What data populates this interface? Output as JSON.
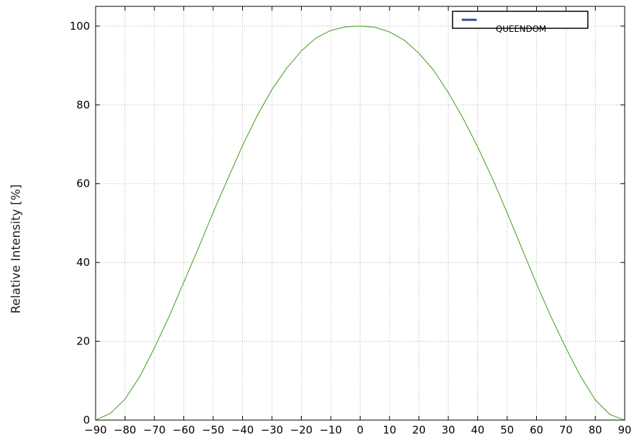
{
  "chart_data": {
    "type": "line",
    "title": "",
    "xlabel": "",
    "ylabel": "Relative Intensity [%]",
    "xlim": [
      -90,
      90
    ],
    "ylim": [
      0,
      105
    ],
    "x_ticks": [
      -90,
      -80,
      -70,
      -60,
      -50,
      -40,
      -30,
      -20,
      -10,
      0,
      10,
      20,
      30,
      40,
      50,
      60,
      70,
      80,
      90
    ],
    "x_tick_labels": [
      "−90",
      "−80",
      "−70",
      "−60",
      "−50",
      "−40",
      "−30",
      "−20",
      "−10",
      "0",
      "10",
      "20",
      "30",
      "40",
      "50",
      "60",
      "70",
      "80",
      "90"
    ],
    "y_ticks": [
      0,
      20,
      40,
      60,
      80,
      100
    ],
    "y_tick_labels": [
      "0",
      "20",
      "40",
      "60",
      "80",
      "100"
    ],
    "grid": true,
    "legend_position": "top-right",
    "legend_entries": [
      {
        "label": "QUEENDOM",
        "color": "#2b4c9b"
      }
    ],
    "series": [
      {
        "color": "#5aaa3c",
        "x": [
          -90,
          -85,
          -80,
          -75,
          -70,
          -65,
          -60,
          -55,
          -50,
          -45,
          -40,
          -35,
          -30,
          -25,
          -20,
          -15,
          -10,
          -5,
          0,
          5,
          10,
          15,
          20,
          25,
          30,
          35,
          40,
          45,
          50,
          55,
          60,
          65,
          70,
          75,
          80,
          85,
          90
        ],
        "y": [
          0,
          1.7,
          5.3,
          11.0,
          18.3,
          26.3,
          35.0,
          43.7,
          52.7,
          61.3,
          69.7,
          77.3,
          83.9,
          89.3,
          93.7,
          97.0,
          98.9,
          99.8,
          100,
          99.7,
          98.5,
          96.4,
          93.1,
          88.8,
          83.1,
          76.6,
          69.3,
          61.3,
          52.6,
          43.6,
          34.6,
          26.1,
          18.3,
          11.1,
          5.1,
          1.4,
          0
        ]
      }
    ]
  }
}
